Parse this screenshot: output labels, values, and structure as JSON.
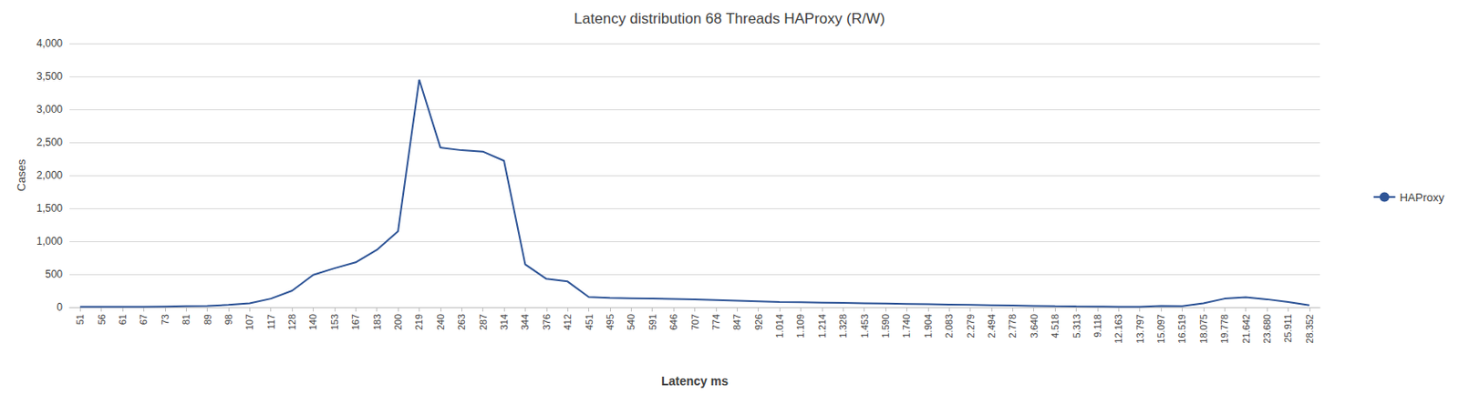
{
  "chart_data": {
    "type": "line",
    "title": "Latency distribution 68 Threads HAProxy (R/W)",
    "xlabel": "Latency ms",
    "ylabel": "Cases",
    "categories": [
      "51",
      "56",
      "61",
      "67",
      "73",
      "81",
      "89",
      "98",
      "107",
      "117",
      "128",
      "140",
      "153",
      "167",
      "183",
      "200",
      "219",
      "240",
      "263",
      "287",
      "314",
      "344",
      "376",
      "412",
      "451",
      "495",
      "540",
      "591",
      "646",
      "707",
      "774",
      "847",
      "926",
      "1.014",
      "1.109",
      "1.214",
      "1.328",
      "1.453",
      "1.590",
      "1.740",
      "1.904",
      "2.083",
      "2.279",
      "2.494",
      "2.778",
      "3.640",
      "4.518",
      "5.313",
      "9.118",
      "12.163",
      "13.797",
      "15.097",
      "16.519",
      "18.075",
      "19.778",
      "21.642",
      "23.680",
      "25.911",
      "28.352"
    ],
    "series": [
      {
        "name": "HAProxy",
        "color": "#2F5597",
        "values": [
          5,
          5,
          5,
          5,
          10,
          15,
          20,
          35,
          60,
          130,
          250,
          490,
          590,
          680,
          870,
          1150,
          3450,
          2420,
          2380,
          2360,
          2220,
          650,
          430,
          390,
          155,
          140,
          135,
          130,
          125,
          120,
          110,
          100,
          90,
          80,
          75,
          70,
          65,
          60,
          55,
          50,
          45,
          40,
          35,
          30,
          25,
          20,
          15,
          12,
          10,
          8,
          7,
          20,
          15,
          60,
          130,
          150,
          120,
          80,
          30
        ]
      }
    ],
    "ylim": [
      0,
      4000
    ],
    "yticks": [
      0,
      500,
      1000,
      1500,
      2000,
      2500,
      3000,
      3500,
      4000
    ],
    "grid": true,
    "legend": "right"
  }
}
